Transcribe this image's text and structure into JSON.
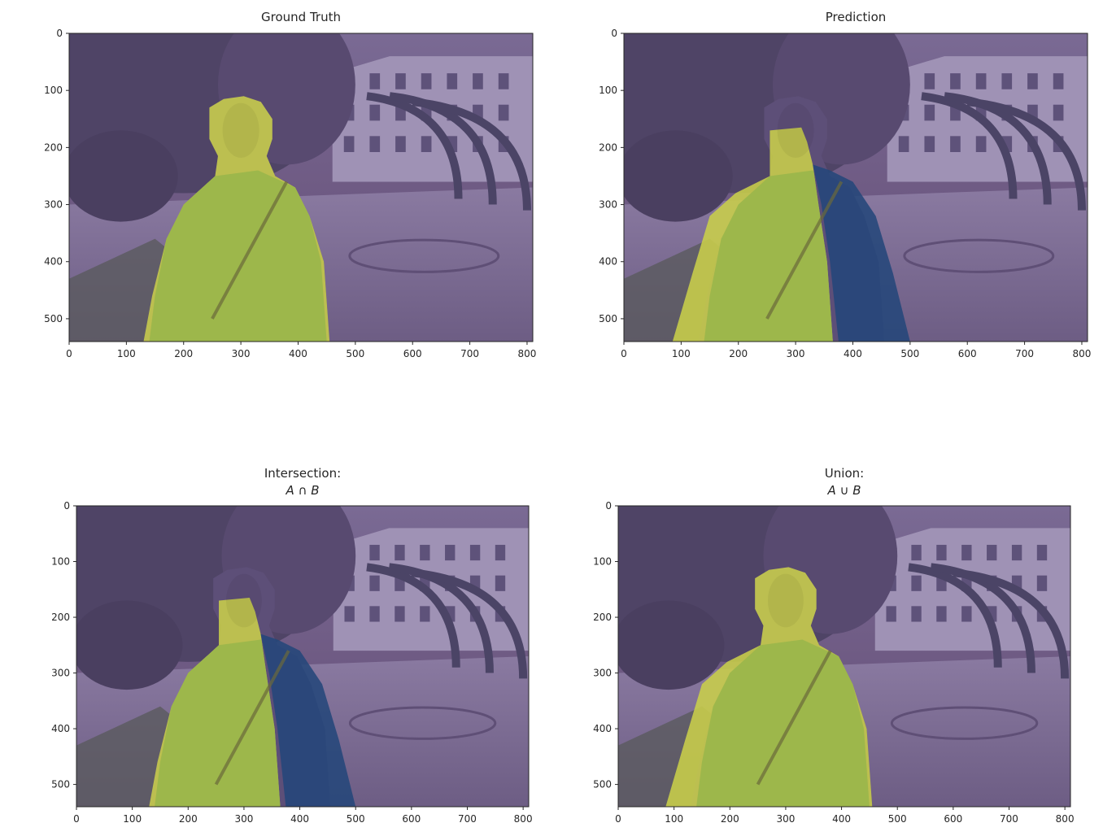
{
  "figure": {
    "layout": "2x2 grid of image panels with segmentation mask overlays"
  },
  "colors": {
    "background_scene": "#6f5b84",
    "sky_region": "#8a7aa5",
    "tree_foliage": "#4f4466",
    "building": "#9f92b5",
    "ground": "#7b6b91",
    "mask_yellow": "#c9cf4a",
    "mask_green": "#98b54a",
    "mask_blue": "#24477a",
    "axis": "#262626"
  },
  "chart_data": [
    {
      "type": "image",
      "title": "Ground Truth",
      "title_math": "",
      "xlabel": "",
      "ylabel": "",
      "xlim": [
        0,
        810
      ],
      "ylim": [
        540,
        0
      ],
      "xticks": [
        0,
        100,
        200,
        300,
        400,
        500,
        600,
        700,
        800
      ],
      "yticks": [
        0,
        100,
        200,
        300,
        400,
        500
      ],
      "overlay": "ground_truth_mask",
      "mask_regions": [
        {
          "label": "person",
          "color_key": "mask_yellow",
          "polygon": [
            [
              245,
              130
            ],
            [
              270,
              115
            ],
            [
              305,
              110
            ],
            [
              335,
              120
            ],
            [
              355,
              150
            ],
            [
              355,
              185
            ],
            [
              345,
              215
            ],
            [
              360,
              250
            ],
            [
              395,
              270
            ],
            [
              420,
              320
            ],
            [
              445,
              400
            ],
            [
              455,
              540
            ],
            [
              130,
              540
            ],
            [
              145,
              460
            ],
            [
              170,
              360
            ],
            [
              200,
              300
            ],
            [
              255,
              250
            ],
            [
              260,
              215
            ],
            [
              245,
              185
            ]
          ]
        }
      ]
    },
    {
      "type": "image",
      "title": "Prediction",
      "title_math": "",
      "xlabel": "",
      "ylabel": "",
      "xlim": [
        0,
        810
      ],
      "ylim": [
        540,
        0
      ],
      "xticks": [
        0,
        100,
        200,
        300,
        400,
        500,
        600,
        700,
        800
      ],
      "yticks": [
        0,
        100,
        200,
        300,
        400,
        500
      ],
      "overlay": "prediction_mask",
      "mask_regions": [
        {
          "label": "person_left",
          "color_key": "mask_yellow",
          "polygon": [
            [
              255,
              170
            ],
            [
              310,
              165
            ],
            [
              320,
              190
            ],
            [
              330,
              230
            ],
            [
              340,
              300
            ],
            [
              355,
              400
            ],
            [
              365,
              540
            ],
            [
              85,
              540
            ],
            [
              120,
              420
            ],
            [
              150,
              320
            ],
            [
              195,
              280
            ],
            [
              255,
              250
            ]
          ]
        },
        {
          "label": "person_right",
          "color_key": "mask_blue",
          "polygon": [
            [
              330,
              230
            ],
            [
              360,
              240
            ],
            [
              400,
              260
            ],
            [
              440,
              320
            ],
            [
              470,
              420
            ],
            [
              500,
              540
            ],
            [
              375,
              540
            ],
            [
              360,
              400
            ],
            [
              345,
              300
            ]
          ]
        }
      ]
    },
    {
      "type": "image",
      "title": "Intersection:",
      "title_math": "A ∩ B",
      "xlabel": "",
      "ylabel": "",
      "xlim": [
        0,
        810
      ],
      "ylim": [
        540,
        0
      ],
      "xticks": [
        0,
        100,
        200,
        300,
        400,
        500,
        600,
        700,
        800
      ],
      "yticks": [
        0,
        100,
        200,
        300,
        400,
        500
      ],
      "overlay": "intersection_mask",
      "mask_regions": [
        {
          "label": "intersection",
          "color_key": "mask_yellow",
          "polygon": [
            [
              255,
              170
            ],
            [
              310,
              165
            ],
            [
              320,
              190
            ],
            [
              330,
              230
            ],
            [
              340,
              300
            ],
            [
              355,
              400
            ],
            [
              365,
              540
            ],
            [
              130,
              540
            ],
            [
              145,
              460
            ],
            [
              170,
              360
            ],
            [
              200,
              300
            ],
            [
              255,
              250
            ]
          ]
        },
        {
          "label": "prediction_only",
          "color_key": "mask_blue",
          "polygon": [
            [
              330,
              230
            ],
            [
              360,
              240
            ],
            [
              400,
              260
            ],
            [
              440,
              320
            ],
            [
              470,
              420
            ],
            [
              500,
              540
            ],
            [
              375,
              540
            ],
            [
              360,
              400
            ],
            [
              345,
              300
            ]
          ]
        }
      ]
    },
    {
      "type": "image",
      "title": "Union:",
      "title_math": "A ∪ B",
      "xlabel": "",
      "ylabel": "",
      "xlim": [
        0,
        810
      ],
      "ylim": [
        540,
        0
      ],
      "xticks": [
        0,
        100,
        200,
        300,
        400,
        500,
        600,
        700,
        800
      ],
      "yticks": [
        0,
        100,
        200,
        300,
        400,
        500
      ],
      "overlay": "union_mask",
      "mask_regions": [
        {
          "label": "union",
          "color_key": "mask_yellow",
          "polygon": [
            [
              245,
              130
            ],
            [
              270,
              115
            ],
            [
              305,
              110
            ],
            [
              335,
              120
            ],
            [
              355,
              150
            ],
            [
              355,
              185
            ],
            [
              345,
              215
            ],
            [
              360,
              250
            ],
            [
              395,
              270
            ],
            [
              420,
              320
            ],
            [
              445,
              400
            ],
            [
              455,
              540
            ],
            [
              85,
              540
            ],
            [
              120,
              420
            ],
            [
              150,
              320
            ],
            [
              195,
              280
            ],
            [
              255,
              250
            ],
            [
              260,
              215
            ],
            [
              245,
              185
            ]
          ]
        }
      ]
    }
  ]
}
